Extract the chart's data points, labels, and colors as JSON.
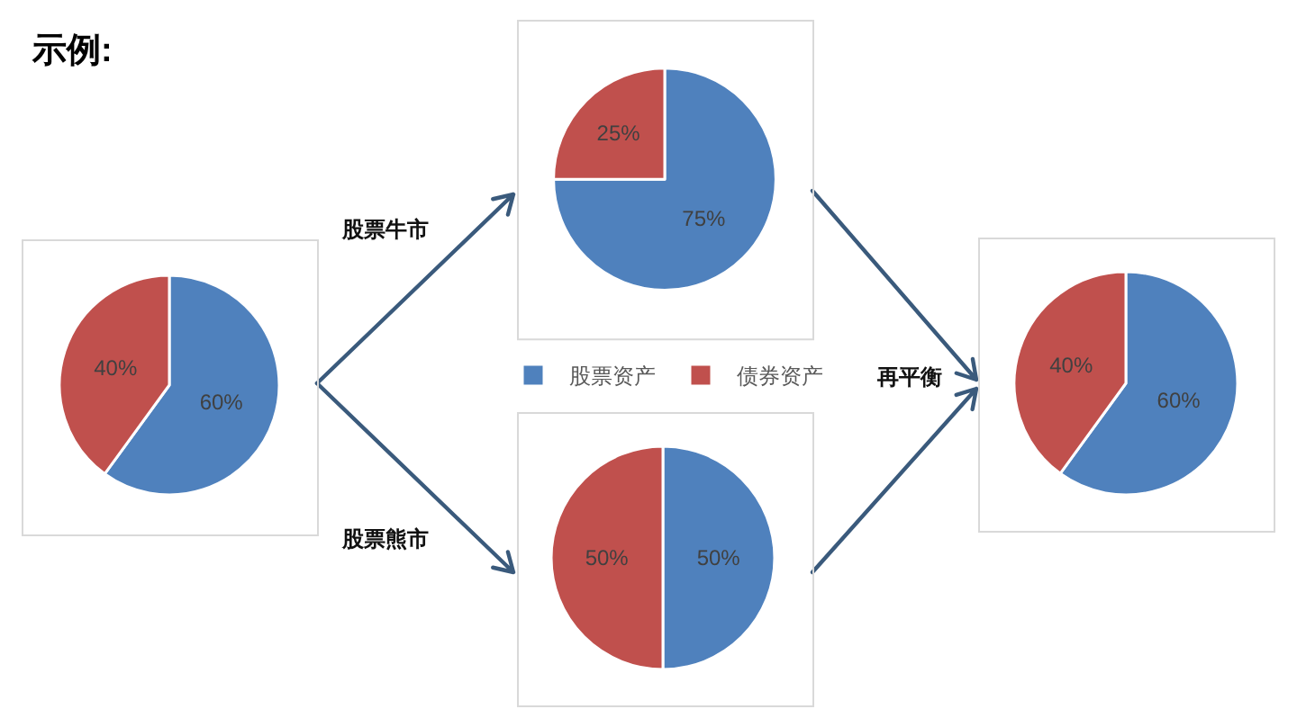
{
  "chart_data": [
    {
      "type": "pie",
      "title": "示例:",
      "categories": [
        null,
        null
      ],
      "values": [
        60,
        40
      ],
      "colors": [
        "#4f81bd",
        "#c0504d"
      ],
      "value_labels": [
        "60%",
        "40%"
      ]
    },
    {
      "type": "pie",
      "categories": [
        "股票资产",
        "债券资产"
      ],
      "values": [
        75,
        25
      ],
      "colors": [
        "#4f81bd",
        "#c0504d"
      ],
      "value_labels": [
        "75%",
        "25%"
      ],
      "annotations": [
        "股票牛市"
      ],
      "legend": "bottom"
    },
    {
      "type": "pie",
      "categories": [
        null,
        null
      ],
      "values": [
        50,
        50
      ],
      "colors": [
        "#4f81bd",
        "#c0504d"
      ],
      "value_labels": [
        "50%",
        "50%"
      ],
      "annotations": [
        "股票熊市"
      ]
    },
    {
      "type": "pie",
      "categories": [
        null,
        null
      ],
      "values": [
        60,
        40
      ],
      "colors": [
        "#4f81bd",
        "#c0504d"
      ],
      "value_labels": [
        "60%",
        "40%"
      ],
      "annotations": [
        "再平衡"
      ]
    }
  ]
}
